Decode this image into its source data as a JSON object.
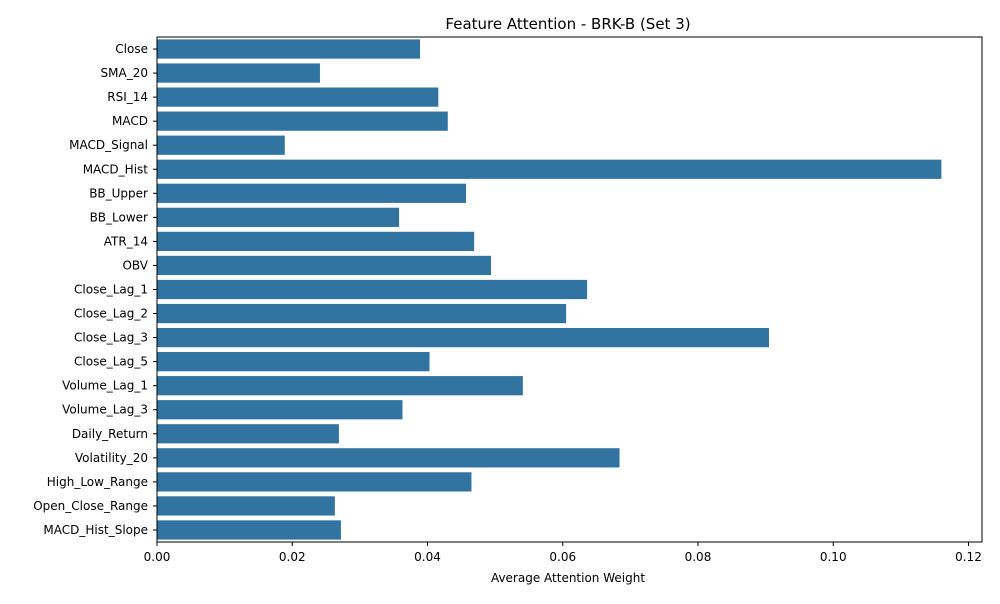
{
  "chart_data": {
    "type": "bar",
    "orientation": "horizontal",
    "title": "Feature Attention - BRK-B (Set 3)",
    "xlabel": "Average Attention Weight",
    "ylabel": "",
    "xlim": [
      0,
      0.122
    ],
    "xticks": [
      0.0,
      0.02,
      0.04,
      0.06,
      0.08,
      0.1,
      0.12
    ],
    "xtick_labels": [
      "0.00",
      "0.02",
      "0.04",
      "0.06",
      "0.08",
      "0.10",
      "0.12"
    ],
    "grid": false,
    "bar_color": "#3274a1",
    "categories": [
      "Close",
      "SMA_20",
      "RSI_14",
      "MACD",
      "MACD_Signal",
      "MACD_Hist",
      "BB_Upper",
      "BB_Lower",
      "ATR_14",
      "OBV",
      "Close_Lag_1",
      "Close_Lag_2",
      "Close_Lag_3",
      "Close_Lag_5",
      "Volume_Lag_1",
      "Volume_Lag_3",
      "Daily_Return",
      "Volatility_20",
      "High_Low_Range",
      "Open_Close_Range",
      "MACD_Hist_Slope"
    ],
    "values": [
      0.0389,
      0.0241,
      0.0416,
      0.043,
      0.0189,
      0.116,
      0.0457,
      0.0358,
      0.0469,
      0.0494,
      0.0636,
      0.0605,
      0.0905,
      0.0403,
      0.0541,
      0.0363,
      0.0269,
      0.0684,
      0.0465,
      0.0263,
      0.0272
    ]
  }
}
